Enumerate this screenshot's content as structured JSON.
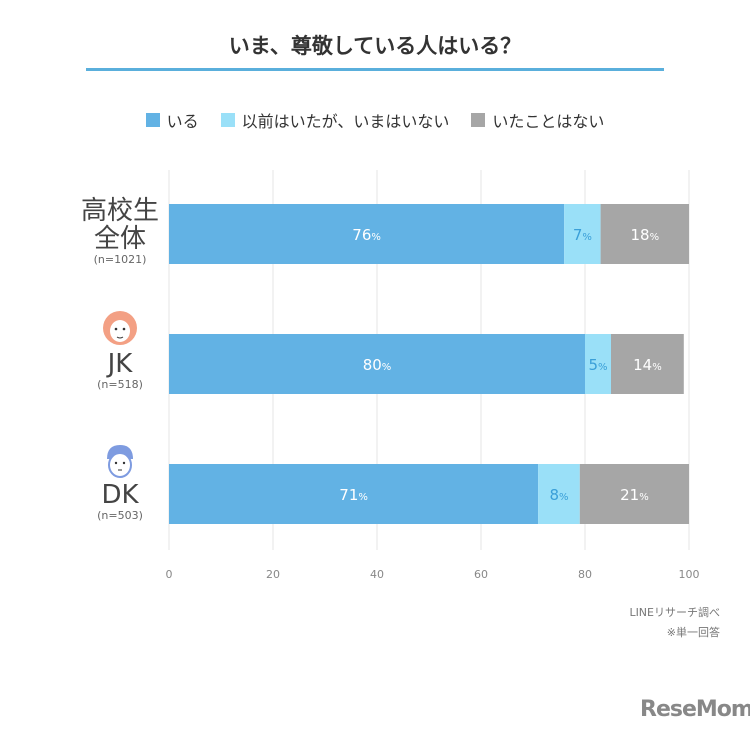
{
  "title": "いま、尊敬している人はいる？",
  "chart_data": {
    "type": "bar",
    "orientation": "horizontal-stacked",
    "title": "いま、尊敬している人はいる？",
    "categories": [
      {
        "label": "高校生全体",
        "label_lines": [
          "高校生",
          "全体"
        ],
        "n": "(n=1021)"
      },
      {
        "label": "JK",
        "label_lines": [
          "JK"
        ],
        "n": "(n=518)",
        "icon": "girl-face-icon"
      },
      {
        "label": "DK",
        "label_lines": [
          "DK"
        ],
        "n": "(n=503)",
        "icon": "boy-face-icon"
      }
    ],
    "series": [
      {
        "name": "いる",
        "color": "#62b2e4",
        "values": [
          76,
          80,
          71
        ]
      },
      {
        "name": "以前はいたが、いまはいない",
        "color": "#9ae0f8",
        "values": [
          7,
          5,
          8
        ]
      },
      {
        "name": "いたことはない",
        "color": "#a6a6a6",
        "values": [
          18,
          14,
          21
        ]
      }
    ],
    "xlim": [
      0,
      100
    ],
    "xticks": [
      0,
      20,
      40,
      60,
      80,
      100
    ],
    "grid": true,
    "legend_placement": "top",
    "unit": "%"
  },
  "notes": [
    "LINEリサーチ調べ",
    "※単一回答"
  ],
  "logo": "ReseMom"
}
